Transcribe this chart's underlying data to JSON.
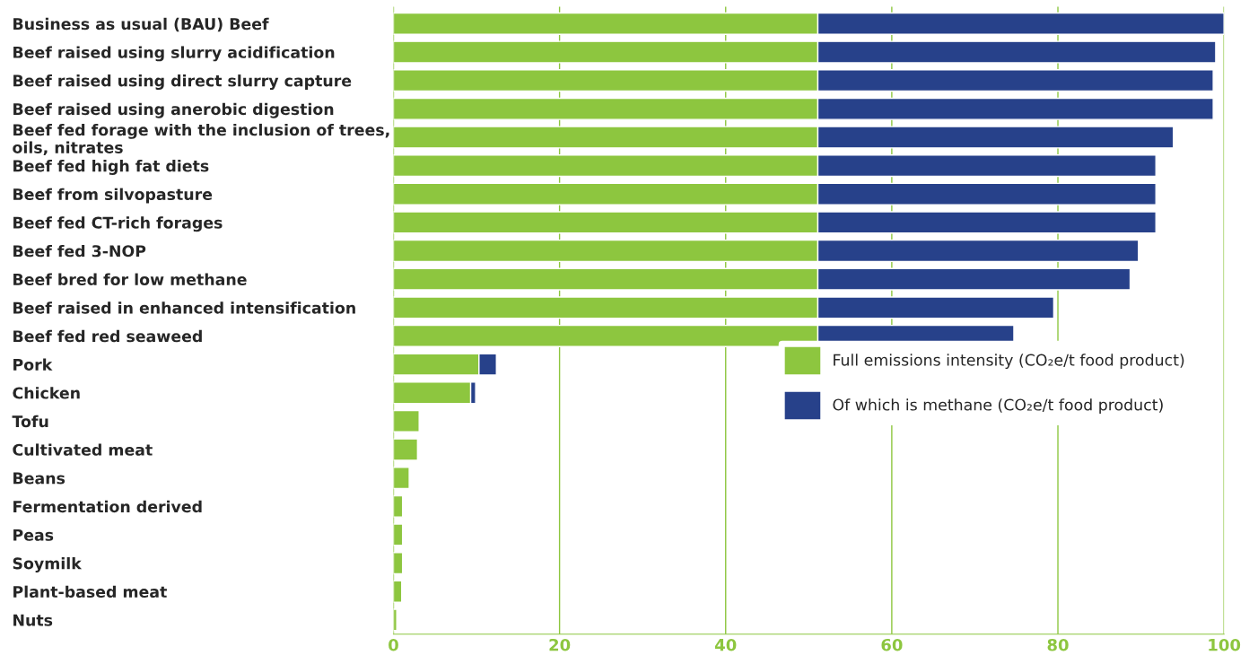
{
  "chart_data": {
    "type": "bar",
    "orientation": "horizontal",
    "stacked": true,
    "categories": [
      "Business as usual (BAU) Beef",
      "Beef raised using slurry acidification",
      "Beef raised using direct slurry capture",
      "Beef raised using anerobic digestion",
      "Beef fed forage with the inclusion of trees,\noils, nitrates",
      "Beef fed high fat diets",
      "Beef from silvopasture",
      "Beef fed CT-rich forages",
      "Beef fed 3-NOP",
      "Beef bred for low methane",
      "Beef raised in enhanced intensification",
      "Beef fed red seaweed",
      "Pork",
      "Chicken",
      "Tofu",
      "Cultivated meat",
      "Beans",
      "Fermentation derived",
      "Peas",
      "Soymilk",
      "Plant-based meat",
      "Nuts"
    ],
    "series": [
      {
        "name": "Full emissions intensity (CO₂e/t food product)",
        "color": "#8dc63f",
        "values": [
          51.1,
          51.1,
          51.1,
          51.1,
          51.1,
          51.1,
          51.1,
          51.1,
          51.1,
          51.1,
          51.1,
          51.1,
          10.3,
          9.3,
          3.1,
          2.9,
          1.9,
          1.1,
          1.1,
          1.1,
          1.0,
          0.4
        ]
      },
      {
        "name": "Of which is methane (CO₂e/t food product)",
        "color": "#27418a",
        "values": [
          48.9,
          47.9,
          47.6,
          47.6,
          42.8,
          40.7,
          40.7,
          40.7,
          38.6,
          37.6,
          28.4,
          23.6,
          2.1,
          0.6,
          null,
          null,
          null,
          null,
          null,
          null,
          null,
          null
        ]
      }
    ],
    "xlim": [
      0,
      100
    ],
    "xticks": [
      0,
      20,
      40,
      60,
      80,
      100
    ],
    "grid": "x",
    "legend": "right"
  }
}
